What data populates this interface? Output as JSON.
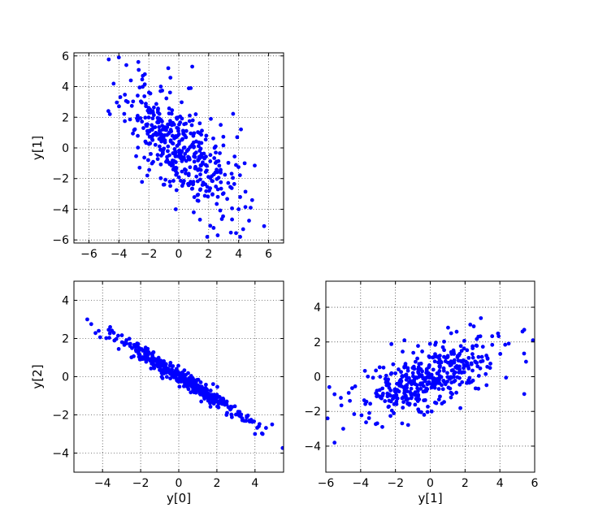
{
  "marker_color": "#0000ff",
  "chart_data": [
    {
      "type": "scatter",
      "name": "y0-vs-y1",
      "title": "",
      "xlabel": "",
      "ylabel": "y[1]",
      "xlim": [
        -7,
        7
      ],
      "ylim": [
        -6.2,
        6.2
      ],
      "xticks": [
        -6,
        -4,
        -2,
        0,
        2,
        4,
        6
      ],
      "yticks": [
        -6,
        -4,
        -2,
        0,
        2,
        4,
        6
      ],
      "grid": true,
      "gen": {
        "n": 420,
        "seed": 11,
        "sx": 1.75,
        "slope": -0.72,
        "noise": 1.4
      },
      "points": [
        {
          "x": -4.0,
          "y": 5.9
        },
        {
          "x": -3.5,
          "y": 5.4
        },
        {
          "x": -2.7,
          "y": 5.6
        },
        {
          "x": -2.4,
          "y": 4.7
        },
        {
          "x": -4.7,
          "y": 2.4
        },
        {
          "x": -4.6,
          "y": 2.2
        },
        {
          "x": -3.2,
          "y": 4.4
        },
        {
          "x": -1.2,
          "y": 4.0
        },
        {
          "x": 0.9,
          "y": 5.3
        },
        {
          "x": -0.7,
          "y": 5.2
        },
        {
          "x": 0.8,
          "y": 3.9
        },
        {
          "x": 4.8,
          "y": -3.9
        },
        {
          "x": 5.7,
          "y": -5.1
        },
        {
          "x": 4.3,
          "y": -5.3
        },
        {
          "x": 4.1,
          "y": -5.8
        },
        {
          "x": 1.9,
          "y": -5.8
        },
        {
          "x": 2.6,
          "y": -5.7
        },
        {
          "x": 3.9,
          "y": 0.7
        },
        {
          "x": 4.0,
          "y": -4.0
        },
        {
          "x": 4.4,
          "y": -1.0
        },
        {
          "x": -2.1,
          "y": -1.8
        },
        {
          "x": 1.0,
          "y": -4.2
        },
        {
          "x": -0.2,
          "y": -4.0
        },
        {
          "x": 2.8,
          "y": 1.5
        }
      ]
    },
    {
      "type": "scatter",
      "name": "y0-vs-y2",
      "title": "",
      "xlabel": "y[0]",
      "ylabel": "y[2]",
      "xlim": [
        -5.5,
        5.5
      ],
      "ylim": [
        -5,
        5
      ],
      "xticks": [
        -4,
        -2,
        0,
        2,
        4
      ],
      "yticks": [
        -4,
        -2,
        0,
        2,
        4
      ],
      "grid": true,
      "gen": {
        "n": 420,
        "seed": 23,
        "sx": 1.6,
        "slope": -0.62,
        "noise": 0.22
      },
      "points": [
        {
          "x": -4.8,
          "y": 3.0
        },
        {
          "x": -4.2,
          "y": 2.4
        },
        {
          "x": -3.6,
          "y": 2.6
        },
        {
          "x": 4.9,
          "y": -2.5
        },
        {
          "x": 4.4,
          "y": -3.0
        },
        {
          "x": 4.0,
          "y": -3.0
        },
        {
          "x": 4.2,
          "y": -2.6
        },
        {
          "x": 3.7,
          "y": -2.3
        }
      ]
    },
    {
      "type": "scatter",
      "name": "y1-vs-y2",
      "title": "",
      "xlabel": "y[1]",
      "ylabel": "",
      "xlim": [
        -6,
        6
      ],
      "ylim": [
        -5.5,
        5.5
      ],
      "xticks": [
        -6,
        -4,
        -2,
        0,
        2,
        4,
        6
      ],
      "yticks": [
        -4,
        -2,
        0,
        2,
        4
      ],
      "grid": true,
      "gen": {
        "n": 420,
        "seed": 37,
        "sx": 1.9,
        "slope": 0.34,
        "noise": 0.85
      },
      "points": [
        {
          "x": -5.5,
          "y": -3.8
        },
        {
          "x": -5.9,
          "y": -2.4
        },
        {
          "x": -5.8,
          "y": -0.6
        },
        {
          "x": -5.0,
          "y": -3.0
        },
        {
          "x": 5.4,
          "y": 2.7
        },
        {
          "x": 5.3,
          "y": 2.6
        },
        {
          "x": 5.9,
          "y": 2.1
        },
        {
          "x": 5.4,
          "y": -1.0
        },
        {
          "x": 2.3,
          "y": 3.0
        },
        {
          "x": 2.5,
          "y": 2.9
        },
        {
          "x": 1.2,
          "y": 2.5
        }
      ]
    }
  ]
}
